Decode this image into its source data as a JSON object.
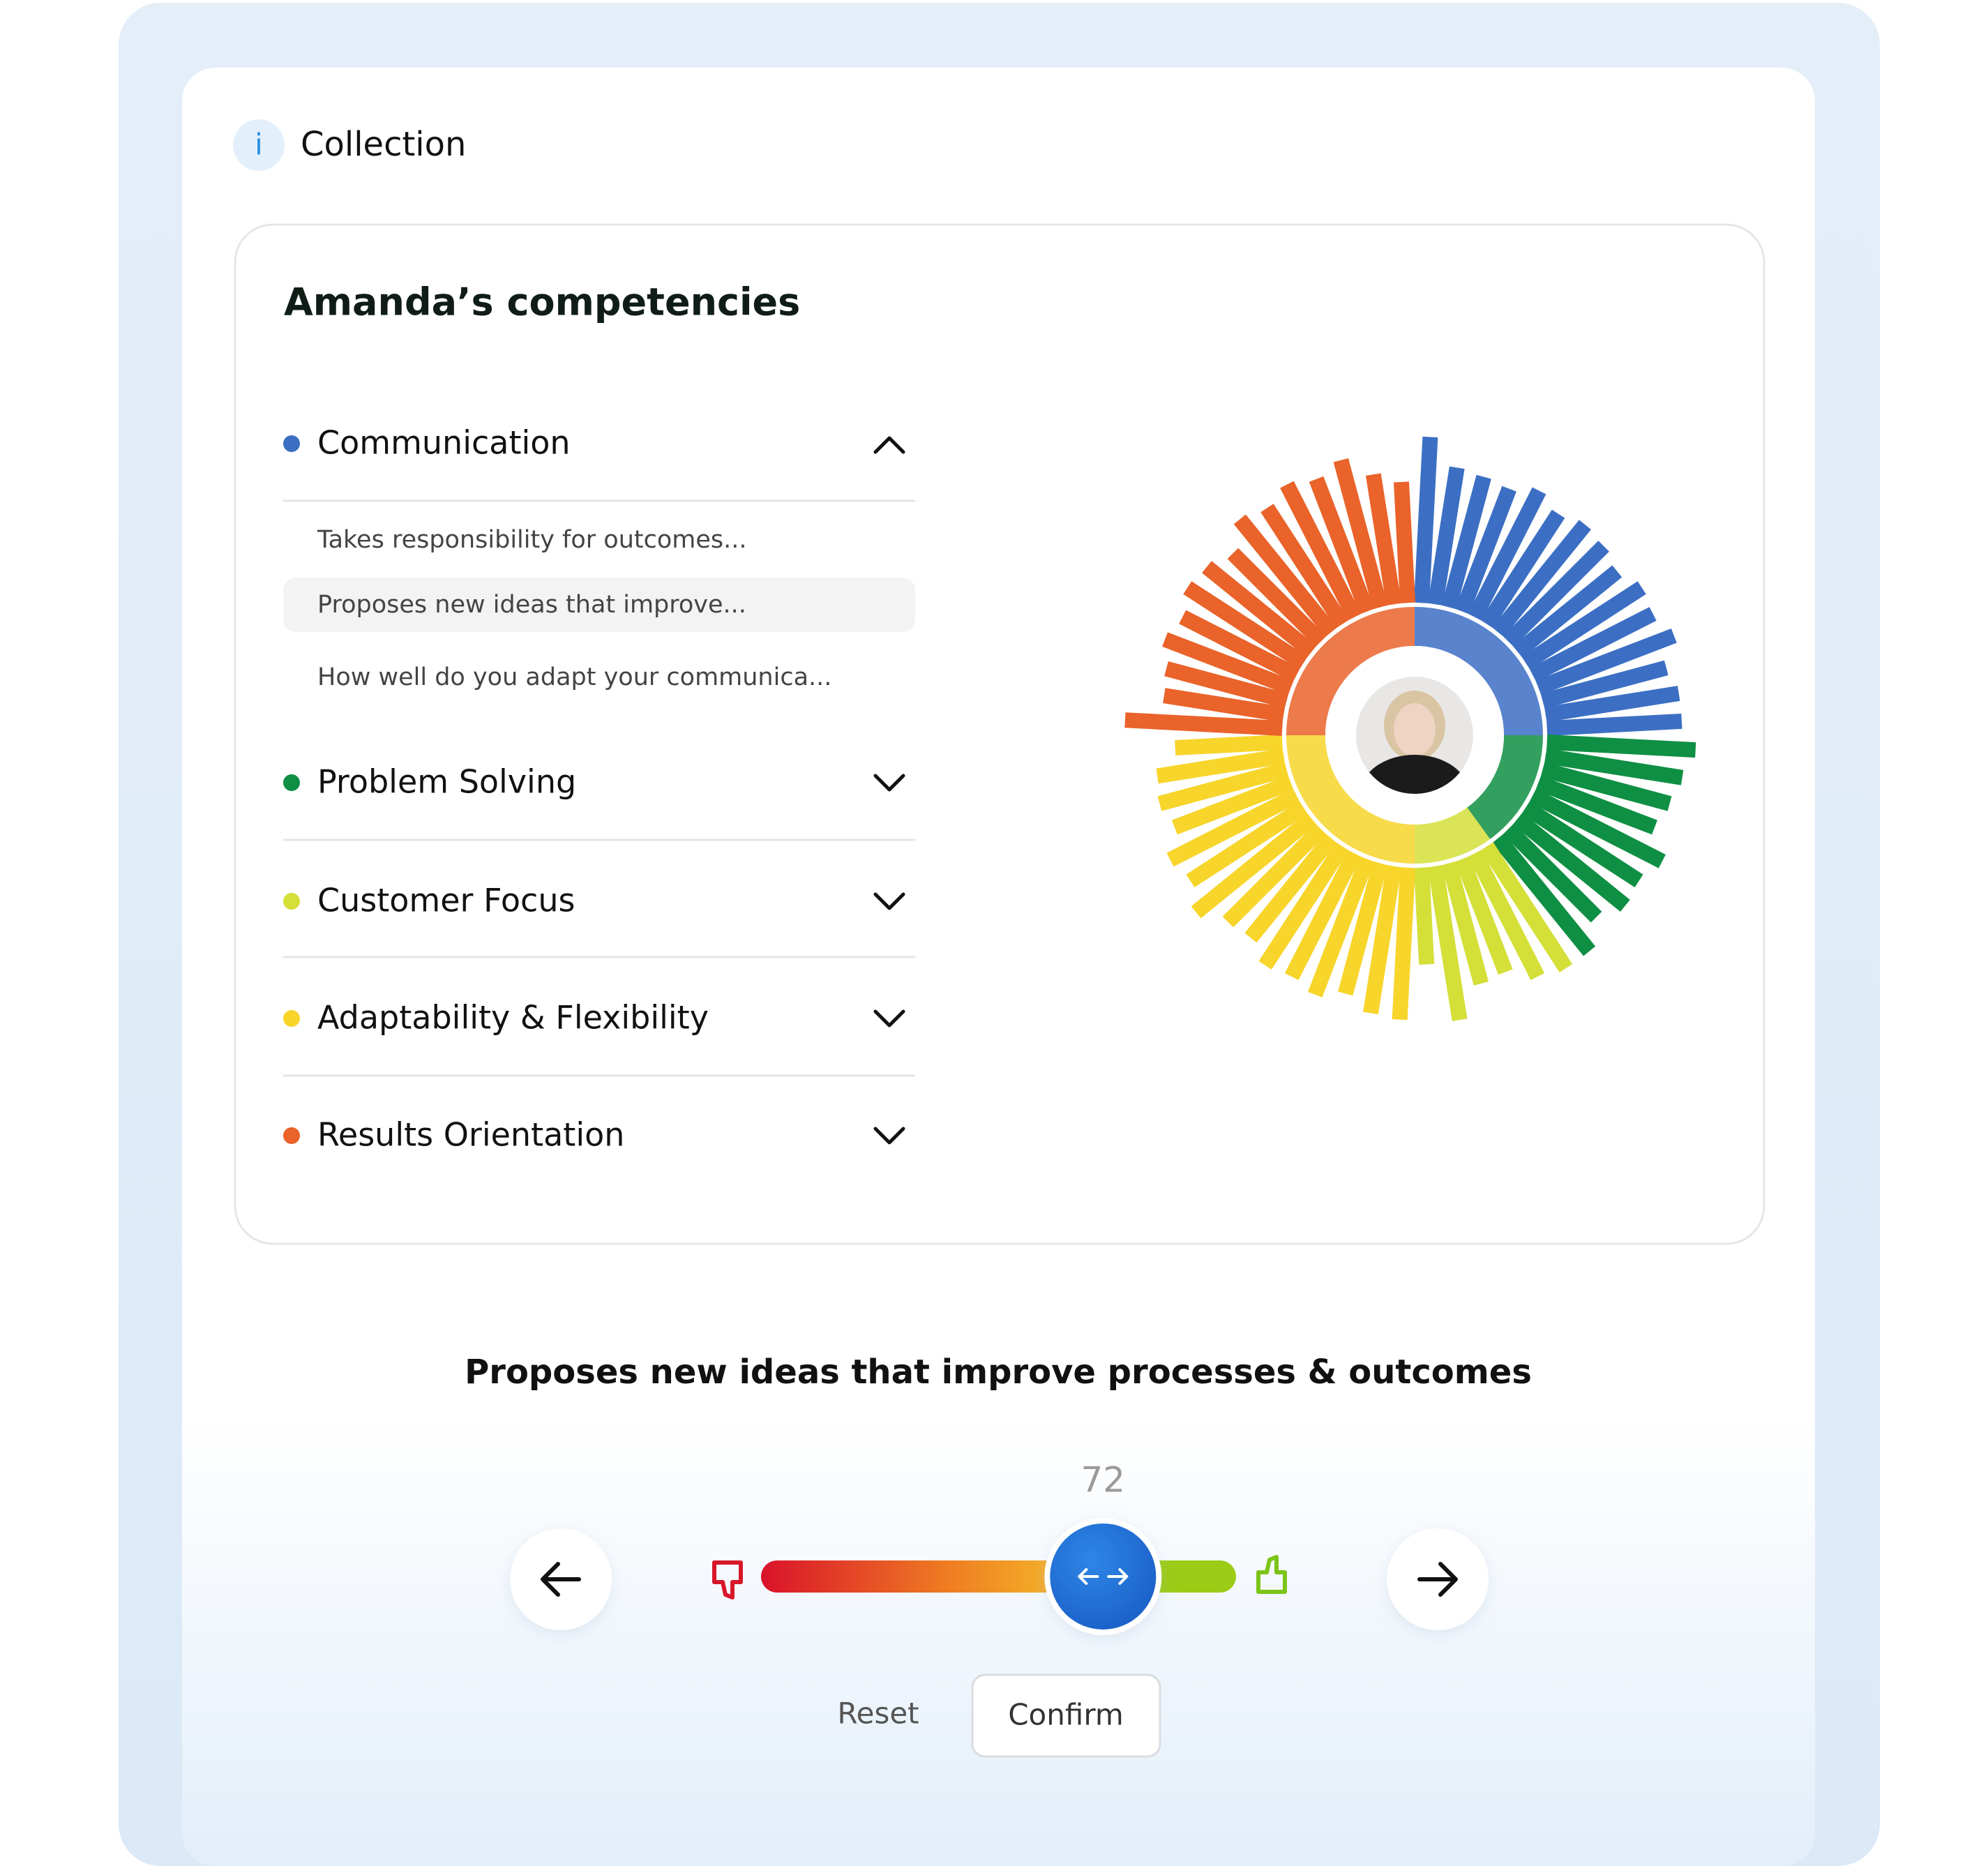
{
  "header": {
    "icon": "i",
    "title": "Collection"
  },
  "card": {
    "title": "Amanda’s competencies",
    "subitems": [
      "Takes responsibility for outcomes...",
      "Proposes new ideas that improve...",
      "How well do you adapt your communica..."
    ]
  },
  "chart_data": {
    "type": "radial-bar",
    "rlim": [
      0,
      100
    ],
    "series": [
      {
        "name": "Communication",
        "color": "#3c6fc4",
        "values": [
          96,
          80,
          78,
          76,
          82,
          76,
          80,
          78,
          74,
          80,
          78,
          84,
          74,
          78,
          78
        ]
      },
      {
        "name": "Problem Solving",
        "color": "#0f8f43",
        "values": [
          86,
          80,
          76,
          72,
          84,
          78,
          80,
          72,
          84
        ]
      },
      {
        "name": "Customer Focus",
        "color": "#d4df38",
        "values": [
          84,
          80,
          70,
          72,
          90,
          56
        ]
      },
      {
        "name": "Adaptability & Flexibility",
        "color": "#f7d52b",
        "values": [
          88,
          86,
          78,
          84,
          80,
          82,
          74,
          76,
          86,
          78,
          82,
          72,
          76,
          74,
          62
        ]
      },
      {
        "name": "Results Orientation",
        "color": "#e9632a",
        "values": [
          91,
          70,
          72,
          78,
          74,
          80,
          78,
          72,
          84,
          80,
          86,
          82,
          88,
          76,
          70
        ]
      }
    ]
  },
  "question": "Proposes new ideas that improve processes & outcomes",
  "slider": {
    "value": 72,
    "range": [
      0,
      100
    ]
  },
  "buttons": {
    "reset": "Reset",
    "confirm": "Confirm"
  }
}
